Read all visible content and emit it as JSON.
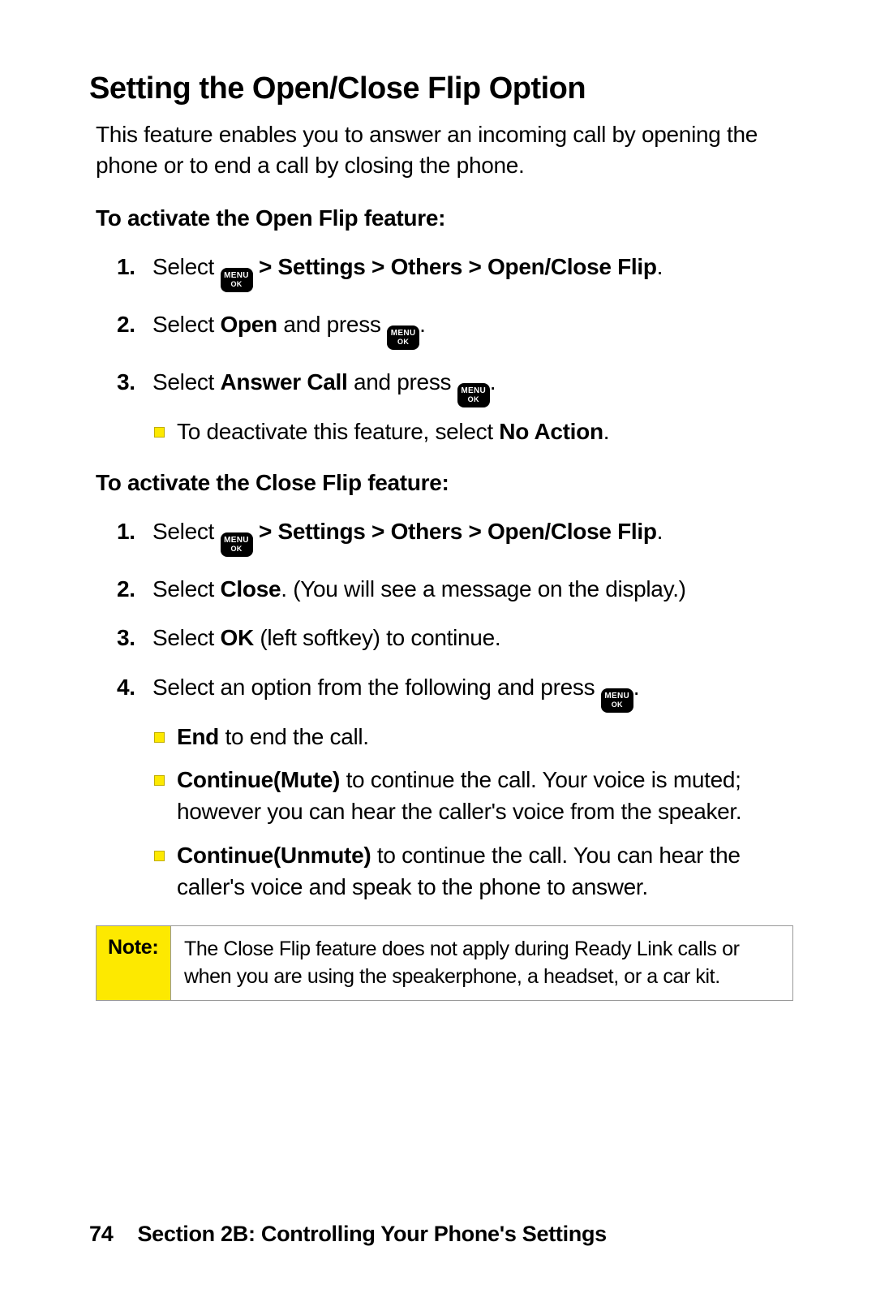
{
  "title": "Setting the Open/Close Flip Option",
  "intro": "This feature enables you to answer an incoming call by opening the phone or to end a call by closing the phone.",
  "menu_key": {
    "line1": "MENU",
    "line2": "OK"
  },
  "open": {
    "heading": "To activate the Open Flip feature:",
    "steps": {
      "s1": {
        "num": "1.",
        "pre": "Select ",
        "post": " > Settings > Others > Open/Close Flip",
        "tail": "."
      },
      "s2": {
        "num": "2.",
        "pre": "Select ",
        "b1": "Open",
        "mid": " and press ",
        "tail": "."
      },
      "s3": {
        "num": "3.",
        "pre": "Select ",
        "b1": "Answer Call",
        "mid": " and press ",
        "tail": ".",
        "sub": {
          "pre": "To deactivate this feature, select ",
          "b1": "No Action",
          "tail": "."
        }
      }
    }
  },
  "close": {
    "heading": "To activate the Close Flip feature:",
    "steps": {
      "s1": {
        "num": "1.",
        "pre": "Select ",
        "post": " > Settings > Others > Open/Close Flip",
        "tail": "."
      },
      "s2": {
        "num": "2.",
        "pre": "Select ",
        "b1": "Close",
        "tail": ". (You will see a message on the display.)"
      },
      "s3": {
        "num": "3.",
        "pre": "Select ",
        "b1": "OK",
        "tail": " (left softkey) to continue."
      },
      "s4": {
        "num": "4.",
        "pre": "Select an option from the following and press ",
        "tail": ".",
        "subs": {
          "a": {
            "b1": "End",
            "tail": " to end the call."
          },
          "b": {
            "b1": "Continue(Mute)",
            "tail": " to continue the call. Your voice is muted; however you can hear the caller's voice from the speaker."
          },
          "c": {
            "b1": "Continue(Unmute)",
            "tail": " to continue the call. You can hear the caller's voice and speak to the phone to answer."
          }
        }
      }
    }
  },
  "note": {
    "label": "Note:",
    "text": "The Close Flip feature does not apply during Ready Link calls or when you are using the speakerphone, a headset, or a car kit."
  },
  "footer": {
    "page": "74",
    "section": "Section 2B: Controlling Your Phone's Settings"
  },
  "colors": {
    "accent": "#fde900",
    "text": "#000000",
    "border": "#999999",
    "bg": "#ffffff"
  }
}
